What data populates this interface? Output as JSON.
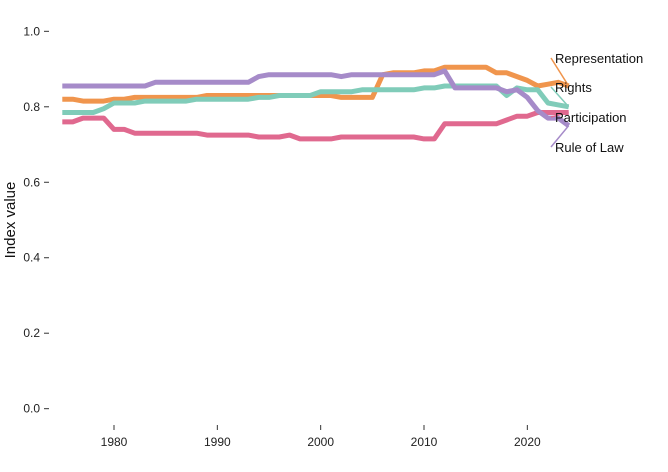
{
  "chart_data": {
    "type": "line",
    "title": "",
    "xlabel": "",
    "ylabel": "Index value",
    "xlim": [
      1974,
      2028
    ],
    "ylim": [
      -0.03,
      1.03
    ],
    "x_ticks": [
      1980,
      1990,
      2000,
      2010,
      2020
    ],
    "y_ticks": [
      0.0,
      0.2,
      0.4,
      0.6,
      0.8,
      1.0
    ],
    "y_tick_labels": [
      "0.0",
      "0.2",
      "0.4",
      "0.6",
      "0.8",
      "1.0"
    ],
    "grid": false,
    "legend": "direct labels at right end of lines",
    "x": [
      1975,
      1976,
      1977,
      1978,
      1979,
      1980,
      1981,
      1982,
      1983,
      1984,
      1985,
      1986,
      1987,
      1988,
      1989,
      1990,
      1991,
      1992,
      1993,
      1994,
      1995,
      1996,
      1997,
      1998,
      1999,
      2000,
      2001,
      2002,
      2003,
      2004,
      2005,
      2006,
      2007,
      2008,
      2009,
      2010,
      2011,
      2012,
      2013,
      2014,
      2015,
      2016,
      2017,
      2018,
      2019,
      2020,
      2021,
      2022,
      2023,
      2024
    ],
    "series": [
      {
        "name": "Representation",
        "color": "#f0954d",
        "values": [
          0.82,
          0.82,
          0.815,
          0.815,
          0.815,
          0.82,
          0.82,
          0.825,
          0.825,
          0.825,
          0.825,
          0.825,
          0.825,
          0.825,
          0.83,
          0.83,
          0.83,
          0.83,
          0.83,
          0.83,
          0.83,
          0.83,
          0.83,
          0.83,
          0.83,
          0.83,
          0.83,
          0.825,
          0.825,
          0.825,
          0.825,
          0.885,
          0.89,
          0.89,
          0.89,
          0.895,
          0.895,
          0.905,
          0.905,
          0.905,
          0.905,
          0.905,
          0.89,
          0.89,
          0.88,
          0.87,
          0.855,
          0.86,
          0.865,
          0.855
        ]
      },
      {
        "name": "Rights",
        "color": "#80ccb9",
        "values": [
          0.785,
          0.785,
          0.785,
          0.785,
          0.795,
          0.81,
          0.81,
          0.81,
          0.815,
          0.815,
          0.815,
          0.815,
          0.815,
          0.82,
          0.82,
          0.82,
          0.82,
          0.82,
          0.82,
          0.825,
          0.825,
          0.83,
          0.83,
          0.83,
          0.83,
          0.84,
          0.84,
          0.84,
          0.84,
          0.845,
          0.845,
          0.845,
          0.845,
          0.845,
          0.845,
          0.85,
          0.85,
          0.855,
          0.855,
          0.855,
          0.855,
          0.855,
          0.855,
          0.83,
          0.85,
          0.845,
          0.845,
          0.81,
          0.805,
          0.8
        ]
      },
      {
        "name": "Participation",
        "color": "#e0698f",
        "values": [
          0.76,
          0.76,
          0.77,
          0.77,
          0.77,
          0.74,
          0.74,
          0.73,
          0.73,
          0.73,
          0.73,
          0.73,
          0.73,
          0.73,
          0.725,
          0.725,
          0.725,
          0.725,
          0.725,
          0.72,
          0.72,
          0.72,
          0.725,
          0.715,
          0.715,
          0.715,
          0.715,
          0.72,
          0.72,
          0.72,
          0.72,
          0.72,
          0.72,
          0.72,
          0.72,
          0.715,
          0.715,
          0.755,
          0.755,
          0.755,
          0.755,
          0.755,
          0.755,
          0.765,
          0.775,
          0.775,
          0.785,
          0.785,
          0.785,
          0.785
        ]
      },
      {
        "name": "Rule of Law",
        "color": "#a68bc9",
        "values": [
          0.855,
          0.855,
          0.855,
          0.855,
          0.855,
          0.855,
          0.855,
          0.855,
          0.855,
          0.865,
          0.865,
          0.865,
          0.865,
          0.865,
          0.865,
          0.865,
          0.865,
          0.865,
          0.865,
          0.88,
          0.885,
          0.885,
          0.885,
          0.885,
          0.885,
          0.885,
          0.885,
          0.88,
          0.885,
          0.885,
          0.885,
          0.885,
          0.885,
          0.885,
          0.885,
          0.885,
          0.885,
          0.895,
          0.85,
          0.85,
          0.85,
          0.85,
          0.85,
          0.84,
          0.845,
          0.825,
          0.79,
          0.77,
          0.77,
          0.75
        ]
      }
    ]
  }
}
